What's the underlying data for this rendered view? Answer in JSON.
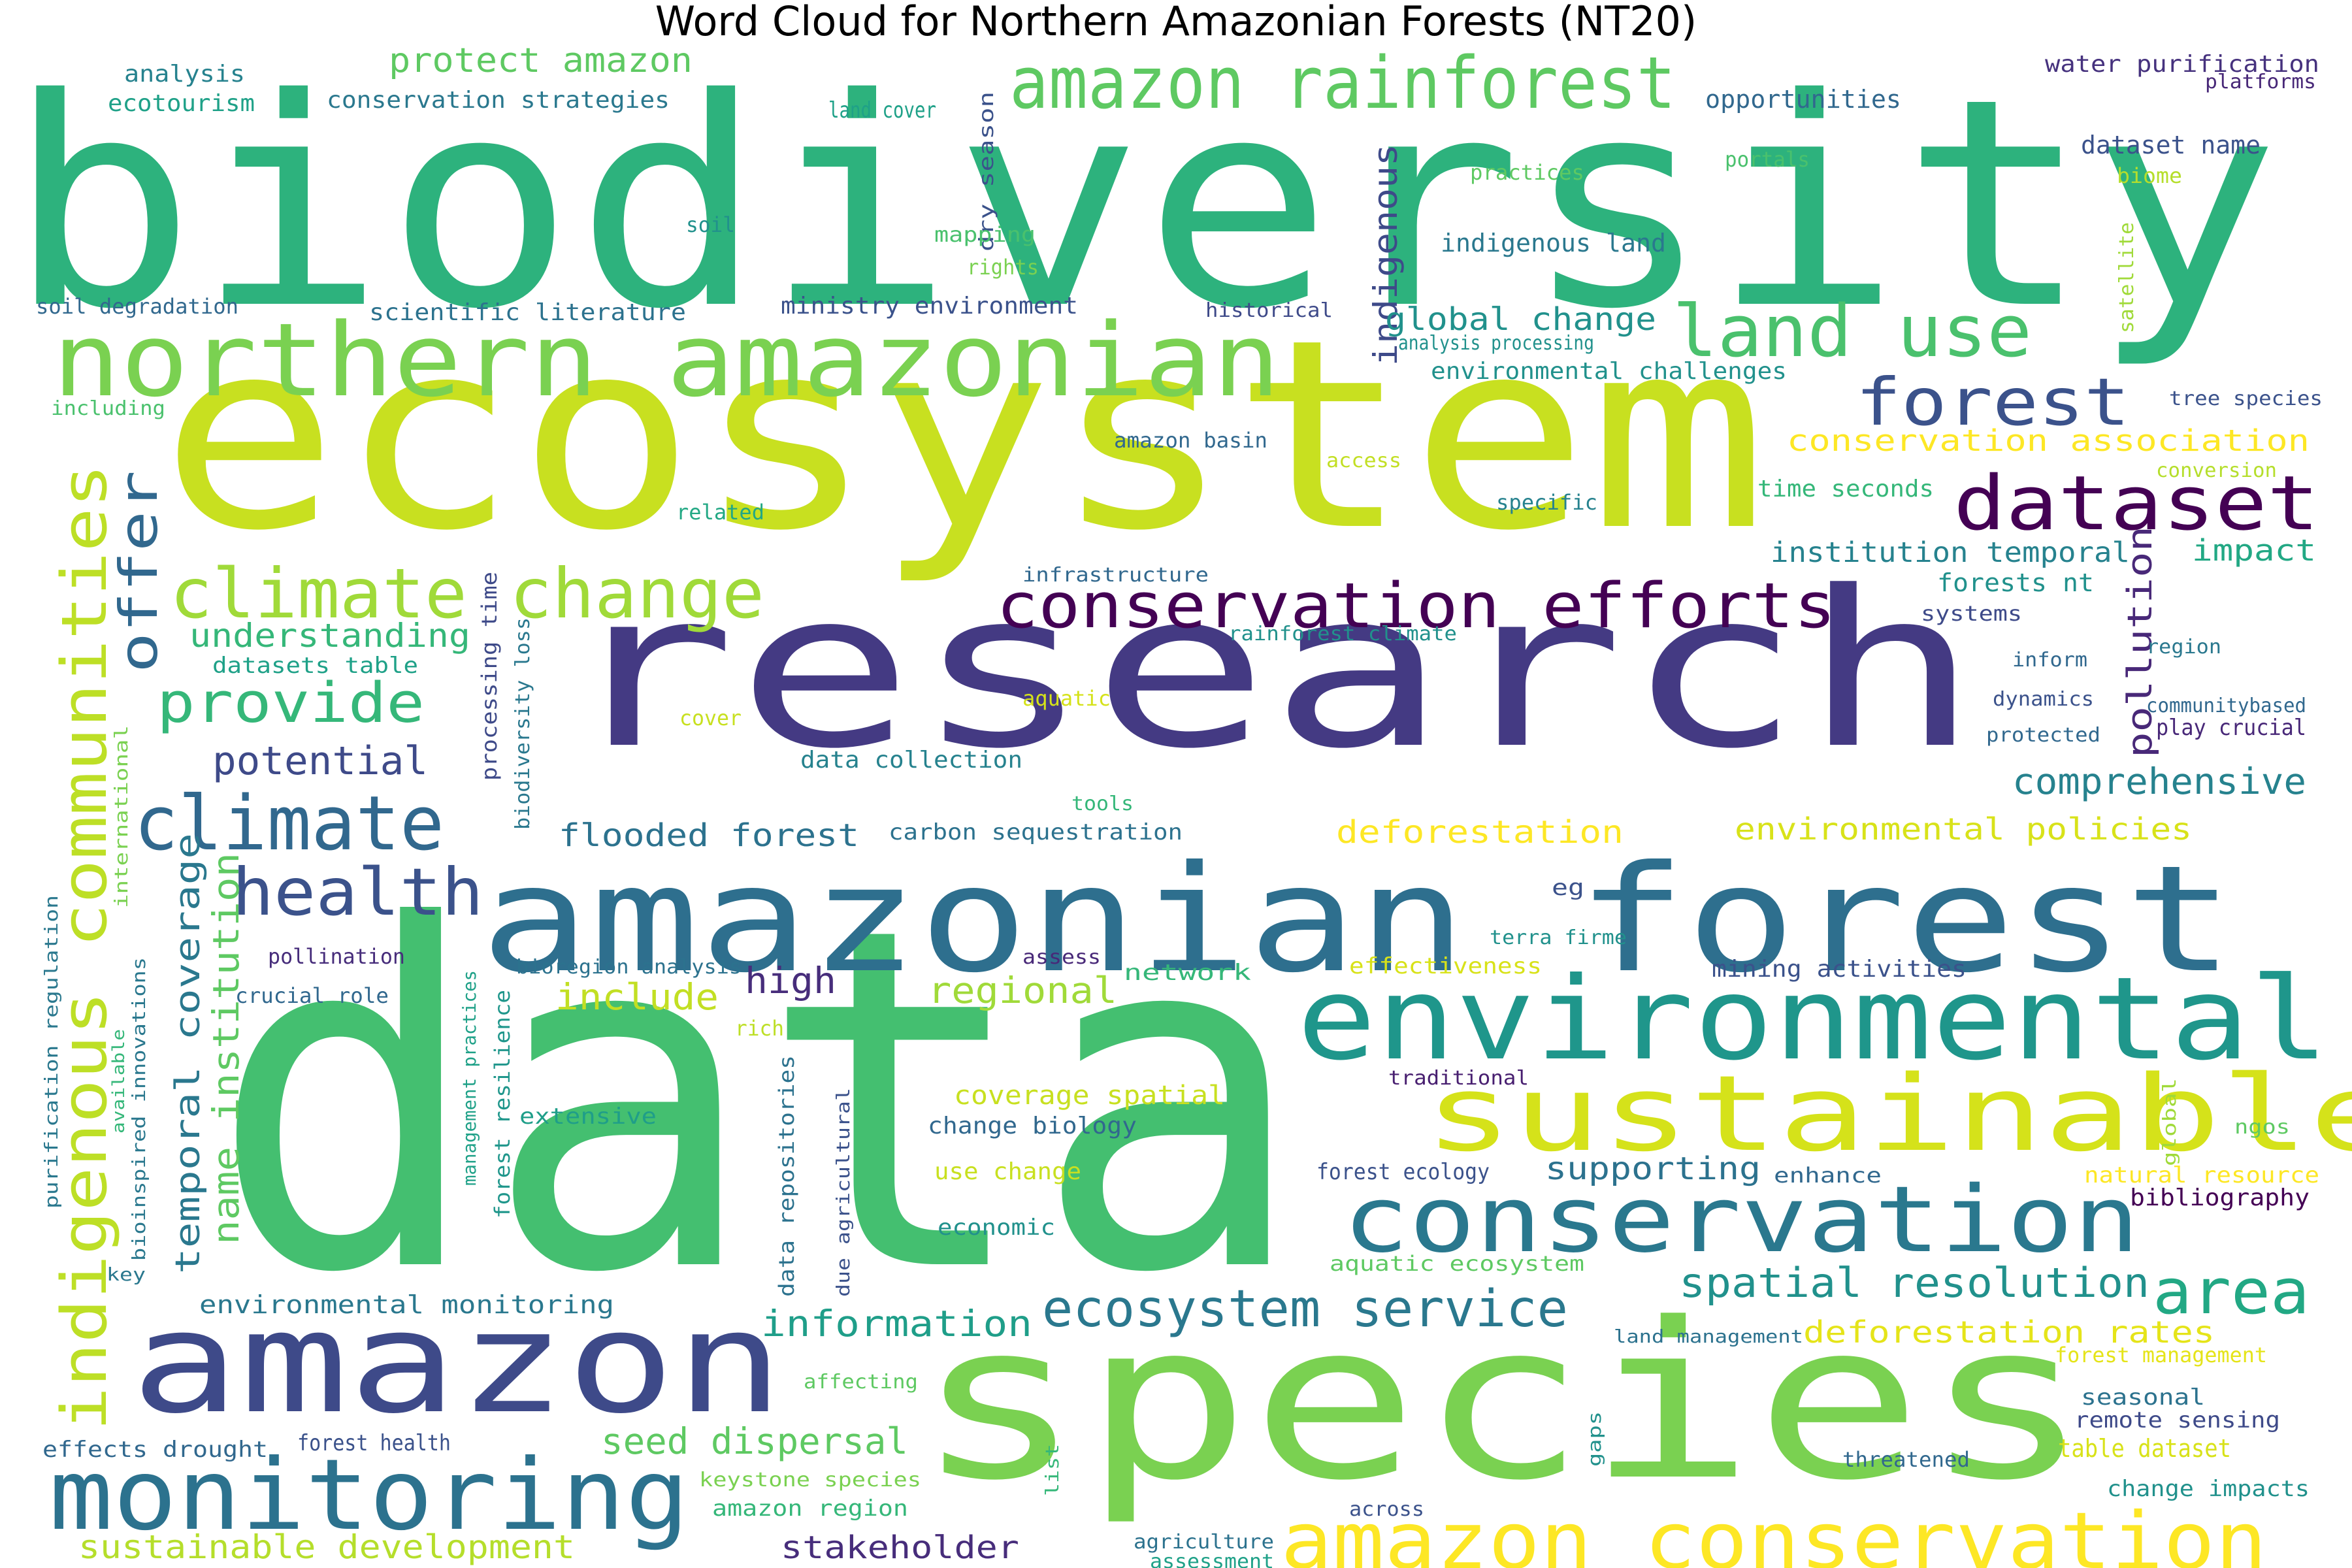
{
  "title": "Word Cloud for Northern Amazonian Forests (NT20)",
  "words": [
    {
      "text": "biodiversity",
      "color": "#2db27d"
    },
    {
      "text": "ecosystem",
      "color": "#c8e020"
    },
    {
      "text": "research",
      "color": "#443a83"
    },
    {
      "text": "data",
      "color": "#44bf70"
    },
    {
      "text": "species",
      "color": "#7ad151"
    },
    {
      "text": "amazonian forest",
      "color": "#2e6f8e"
    },
    {
      "text": "amazon",
      "color": "#3e4a89"
    },
    {
      "text": "environmental",
      "color": "#1f968b"
    },
    {
      "text": "conservation",
      "color": "#2a788e"
    },
    {
      "text": "sustainable",
      "color": "#d5e21a"
    },
    {
      "text": "monitoring",
      "color": "#2c728e"
    },
    {
      "text": "northern amazonian",
      "color": "#7ad151"
    },
    {
      "text": "amazon rainforest",
      "color": "#5ec962"
    },
    {
      "text": "land use",
      "color": "#4ac16d"
    },
    {
      "text": "forest",
      "color": "#3b528b"
    },
    {
      "text": "dataset",
      "color": "#440154"
    },
    {
      "text": "conservation efforts",
      "color": "#440154"
    },
    {
      "text": "climate change",
      "color": "#a0da39"
    },
    {
      "text": "climate",
      "color": "#31688e"
    },
    {
      "text": "health",
      "color": "#3b528b"
    },
    {
      "text": "provide",
      "color": "#35b779"
    },
    {
      "text": "amazon conservation",
      "color": "#fde725"
    },
    {
      "text": "indigenous communities",
      "color": "#bddf26"
    },
    {
      "text": "ecosystem service",
      "color": "#2a788e"
    },
    {
      "text": "area",
      "color": "#22a884"
    },
    {
      "text": "spatial resolution",
      "color": "#21918c"
    },
    {
      "text": "offer",
      "color": "#31688e"
    },
    {
      "text": "temporal coverage",
      "color": "#2a788e"
    },
    {
      "text": "name institution",
      "color": "#5ec962"
    },
    {
      "text": "pollution",
      "color": "#482878"
    },
    {
      "text": "comprehensive",
      "color": "#26828e"
    },
    {
      "text": "information",
      "color": "#1f9e89"
    },
    {
      "text": "stakeholder",
      "color": "#472d7b"
    },
    {
      "text": "indigenous",
      "color": "#3e4a89"
    },
    {
      "text": "global change",
      "color": "#21918c"
    },
    {
      "text": "conservation association",
      "color": "#fde725"
    },
    {
      "text": "institution temporal",
      "color": "#26828e"
    },
    {
      "text": "impact",
      "color": "#22a884"
    },
    {
      "text": "potential",
      "color": "#3e4a89"
    },
    {
      "text": "understanding",
      "color": "#35b779"
    },
    {
      "text": "flooded forest",
      "color": "#2c728e"
    },
    {
      "text": "deforestation",
      "color": "#fde725"
    },
    {
      "text": "environmental policies",
      "color": "#d8e219"
    },
    {
      "text": "high",
      "color": "#472d7b"
    },
    {
      "text": "regional",
      "color": "#a0da39"
    },
    {
      "text": "include",
      "color": "#c2df23"
    },
    {
      "text": "supporting",
      "color": "#2c728e"
    },
    {
      "text": "deforestation rates",
      "color": "#e5e419"
    },
    {
      "text": "seed dispersal",
      "color": "#5ec962"
    },
    {
      "text": "sustainable development",
      "color": "#b5de2b"
    },
    {
      "text": "protect amazon",
      "color": "#5ec962"
    },
    {
      "text": "conservation strategies",
      "color": "#2a788e"
    },
    {
      "text": "opportunities",
      "color": "#31688e"
    },
    {
      "text": "water purification",
      "color": "#46327e"
    },
    {
      "text": "dataset name",
      "color": "#3b528b"
    },
    {
      "text": "analysis",
      "color": "#26828e"
    },
    {
      "text": "ecotourism",
      "color": "#1fa188"
    },
    {
      "text": "land cover",
      "color": "#1fa188"
    },
    {
      "text": "dry season",
      "color": "#3b528b"
    },
    {
      "text": "platforms",
      "color": "#482878"
    },
    {
      "text": "practices",
      "color": "#5ec962"
    },
    {
      "text": "portals",
      "color": "#4ac16d"
    },
    {
      "text": "biome",
      "color": "#b5de2b"
    },
    {
      "text": "soil",
      "color": "#21918c"
    },
    {
      "text": "mapping",
      "color": "#4ac16d"
    },
    {
      "text": "rights",
      "color": "#7ad151"
    },
    {
      "text": "indigenous land",
      "color": "#2a788e"
    },
    {
      "text": "satellite",
      "color": "#a0da39"
    },
    {
      "text": "soil degradation",
      "color": "#31688e"
    },
    {
      "text": "scientific literature",
      "color": "#2c728e"
    },
    {
      "text": "ministry environment",
      "color": "#3b528b"
    },
    {
      "text": "historical",
      "color": "#3e4a89"
    },
    {
      "text": "analysis processing",
      "color": "#21918c"
    },
    {
      "text": "environmental challenges",
      "color": "#21918c"
    },
    {
      "text": "including",
      "color": "#4ac16d"
    },
    {
      "text": "tree species",
      "color": "#3b528b"
    },
    {
      "text": "amazon basin",
      "color": "#31688e"
    },
    {
      "text": "access",
      "color": "#c2df23"
    },
    {
      "text": "conversion",
      "color": "#b5de2b"
    },
    {
      "text": "specific",
      "color": "#26828e"
    },
    {
      "text": "time seconds",
      "color": "#35b779"
    },
    {
      "text": "related",
      "color": "#22a884"
    },
    {
      "text": "forests nt",
      "color": "#21918c"
    },
    {
      "text": "systems",
      "color": "#3e4a89"
    },
    {
      "text": "infrastructure",
      "color": "#31688e"
    },
    {
      "text": "processing time",
      "color": "#3e4a89"
    },
    {
      "text": "rainforest climate",
      "color": "#21918c"
    },
    {
      "text": "region",
      "color": "#2a788e"
    },
    {
      "text": "inform",
      "color": "#31688e"
    },
    {
      "text": "datasets table",
      "color": "#1fa188"
    },
    {
      "text": "biodiversity loss",
      "color": "#2a788e"
    },
    {
      "text": "aquatic",
      "color": "#d5e21a"
    },
    {
      "text": "dynamics",
      "color": "#3b528b"
    },
    {
      "text": "communitybased",
      "color": "#31688e"
    },
    {
      "text": "cover",
      "color": "#c8e020"
    },
    {
      "text": "protected",
      "color": "#31688e"
    },
    {
      "text": "play crucial",
      "color": "#482878"
    },
    {
      "text": "data collection",
      "color": "#26828e"
    },
    {
      "text": "tools",
      "color": "#35b779"
    },
    {
      "text": "international",
      "color": "#7ad151"
    },
    {
      "text": "carbon sequestration",
      "color": "#2c728e"
    },
    {
      "text": "eg",
      "color": "#3b528b"
    },
    {
      "text": "terra firme",
      "color": "#21918c"
    },
    {
      "text": "purification regulation",
      "color": "#2a788e"
    },
    {
      "text": "pollination",
      "color": "#472d7b"
    },
    {
      "text": "bioregion analysis",
      "color": "#2c728e"
    },
    {
      "text": "assess",
      "color": "#482878"
    },
    {
      "text": "effectiveness",
      "color": "#d8e219"
    },
    {
      "text": "network",
      "color": "#35b779"
    },
    {
      "text": "mining activities",
      "color": "#3b528b"
    },
    {
      "text": "crucial role",
      "color": "#31688e"
    },
    {
      "text": "available",
      "color": "#35b779"
    },
    {
      "text": "bioinspired innovations",
      "color": "#2a788e"
    },
    {
      "text": "management practices",
      "color": "#1fa188"
    },
    {
      "text": "forest resilience",
      "color": "#1f968b"
    },
    {
      "text": "rich",
      "color": "#bddf26"
    },
    {
      "text": "traditional",
      "color": "#481f70"
    },
    {
      "text": "extensive",
      "color": "#1f9e89"
    },
    {
      "text": "coverage spatial",
      "color": "#c8e020"
    },
    {
      "text": "change biology",
      "color": "#31688e"
    },
    {
      "text": "data repositories",
      "color": "#2c728e"
    },
    {
      "text": "due agricultural",
      "color": "#3b528b"
    },
    {
      "text": "global",
      "color": "#a0da39"
    },
    {
      "text": "ngos",
      "color": "#5ec962"
    },
    {
      "text": "use change",
      "color": "#c8e020"
    },
    {
      "text": "forest ecology",
      "color": "#3b528b"
    },
    {
      "text": "enhance",
      "color": "#31688e"
    },
    {
      "text": "natural resource",
      "color": "#fde725"
    },
    {
      "text": "bibliography",
      "color": "#440154"
    },
    {
      "text": "economic",
      "color": "#21918c"
    },
    {
      "text": "aquatic ecosystem",
      "color": "#5ec962"
    },
    {
      "text": "key",
      "color": "#2a788e"
    },
    {
      "text": "environmental monitoring",
      "color": "#2a788e"
    },
    {
      "text": "land management",
      "color": "#2c728e"
    },
    {
      "text": "forest management",
      "color": "#e5e419"
    },
    {
      "text": "seasonal",
      "color": "#2c728e"
    },
    {
      "text": "remote sensing",
      "color": "#3e4a89"
    },
    {
      "text": "affecting",
      "color": "#5ec962"
    },
    {
      "text": "effects drought",
      "color": "#31688e"
    },
    {
      "text": "forest health",
      "color": "#3b528b"
    },
    {
      "text": "keystone species",
      "color": "#7ad151"
    },
    {
      "text": "list",
      "color": "#35b779"
    },
    {
      "text": "gaps",
      "color": "#21918c"
    },
    {
      "text": "threatened",
      "color": "#31688e"
    },
    {
      "text": "table dataset",
      "color": "#d8e219"
    },
    {
      "text": "amazon region",
      "color": "#35b779"
    },
    {
      "text": "across",
      "color": "#3b528b"
    },
    {
      "text": "change impacts",
      "color": "#21918c"
    },
    {
      "text": "agriculture",
      "color": "#2c728e"
    },
    {
      "text": "assessment",
      "color": "#1fa188"
    }
  ]
}
